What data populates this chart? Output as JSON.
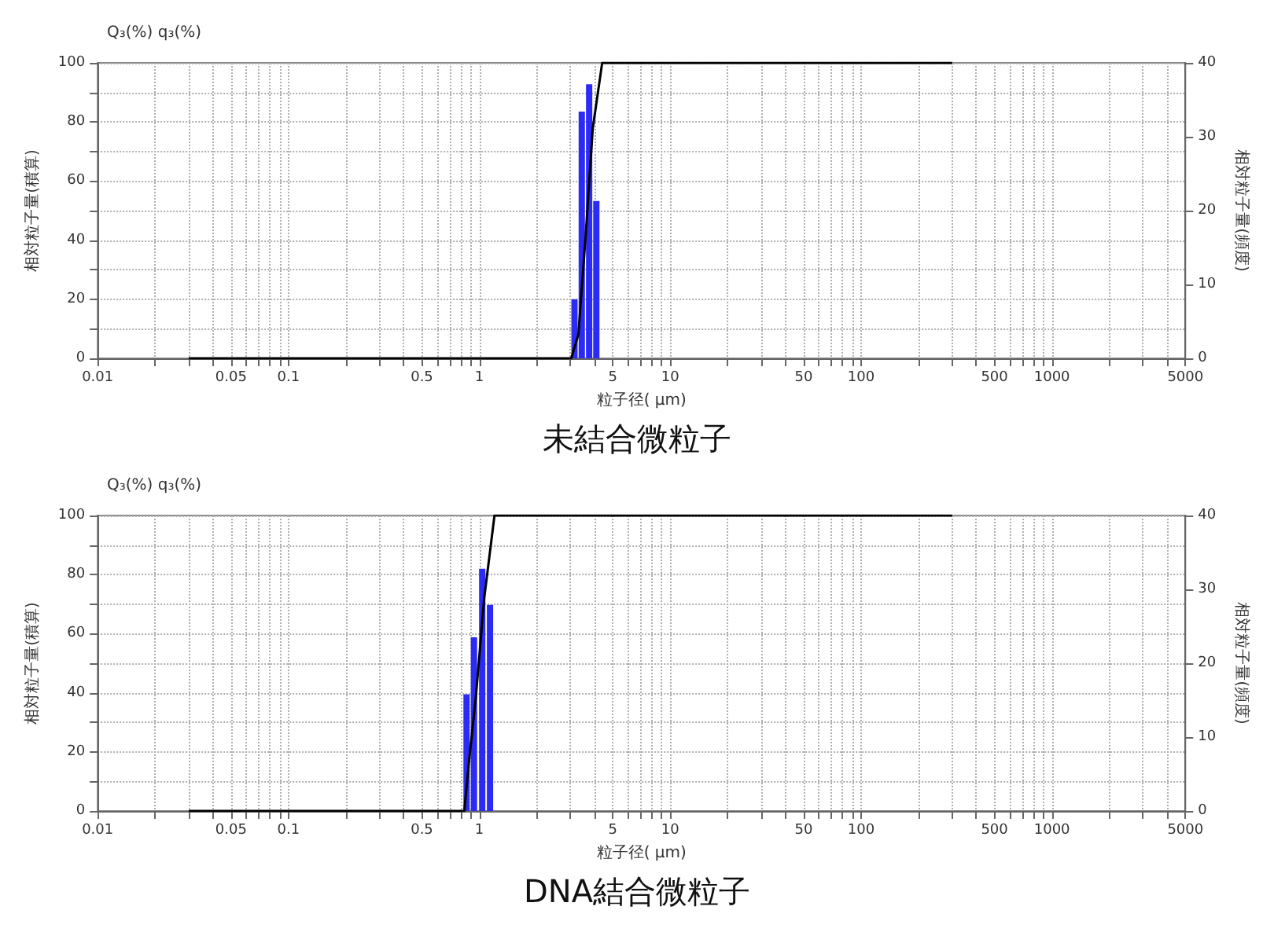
{
  "chart_data": [
    {
      "type": "bar",
      "title": "未結合微粒子",
      "xlabel": "粒子径( μm)",
      "ylabel": "相対粒子量(積算)",
      "y2label": "相対粒子量(頻度)",
      "annotations": [
        "Q₃(%) q₃(%)"
      ],
      "log": "x",
      "grid": true,
      "marker": "none",
      "xlim": [
        0.01,
        5000
      ],
      "ylim": [
        0,
        100
      ],
      "y2lim": [
        0,
        40
      ],
      "xticks": [
        0.01,
        {
          "value": 0.02,
          "label": null
        },
        {
          "value": 0.03,
          "label": null
        },
        {
          "value": 0.04,
          "label": null
        },
        0.05,
        {
          "value": 0.06,
          "label": null
        },
        {
          "value": 0.07,
          "label": null
        },
        {
          "value": 0.08,
          "label": null
        },
        {
          "value": 0.09,
          "label": null
        },
        0.1,
        {
          "value": 0.2,
          "label": null
        },
        {
          "value": 0.3,
          "label": null
        },
        {
          "value": 0.4,
          "label": null
        },
        0.5,
        {
          "value": 0.6,
          "label": null
        },
        {
          "value": 0.7,
          "label": null
        },
        {
          "value": 0.8,
          "label": null
        },
        {
          "value": 0.9,
          "label": null
        },
        1,
        {
          "value": 2,
          "label": null
        },
        {
          "value": 3,
          "label": null
        },
        {
          "value": 4,
          "label": null
        },
        5,
        {
          "value": 6,
          "label": null
        },
        {
          "value": 7,
          "label": null
        },
        {
          "value": 8,
          "label": null
        },
        {
          "value": 9,
          "label": null
        },
        10,
        {
          "value": 20,
          "label": null
        },
        {
          "value": 30,
          "label": null
        },
        {
          "value": 40,
          "label": null
        },
        50,
        {
          "value": 60,
          "label": null
        },
        {
          "value": 70,
          "label": null
        },
        {
          "value": 80,
          "label": null
        },
        {
          "value": 90,
          "label": null
        },
        100,
        {
          "value": 200,
          "label": null
        },
        {
          "value": 300,
          "label": null
        },
        {
          "value": 400,
          "label": null
        },
        500,
        {
          "value": 600,
          "label": null
        },
        {
          "value": 700,
          "label": null
        },
        {
          "value": 800,
          "label": null
        },
        {
          "value": 900,
          "label": null
        },
        1000,
        {
          "value": 2000,
          "label": null
        },
        {
          "value": 3000,
          "label": null
        },
        {
          "value": 4000,
          "label": null
        },
        5000
      ],
      "yticks": [
        0,
        {
          "value": 10,
          "label": null
        },
        20,
        {
          "value": 30,
          "label": null
        },
        40,
        {
          "value": 50,
          "label": null
        },
        60,
        {
          "value": 70,
          "label": null
        },
        80,
        {
          "value": 90,
          "label": null
        },
        100
      ],
      "y2ticks": [
        0,
        10,
        20,
        30,
        40
      ],
      "series": [
        {
          "axis": "y2",
          "color": "#2b2bf5",
          "x": [
            3.15,
            3.44,
            3.76,
            4.1
          ],
          "values": [
            8,
            33.4,
            37.1,
            21.3
          ]
        },
        {
          "type": "line",
          "color": "#000000",
          "x": [
            0.03,
            3.03,
            3.3,
            3.6,
            3.93,
            4.4,
            300
          ],
          "values": [
            0,
            0,
            8,
            41,
            78,
            100,
            100
          ]
        }
      ]
    },
    {
      "type": "bar",
      "title": "DNA結合微粒子",
      "xlabel": "粒子径( μm)",
      "ylabel": "相対粒子量(積算)",
      "y2label": "相対粒子量(頻度)",
      "annotations": [
        "Q₃(%) q₃(%)"
      ],
      "log": "x",
      "grid": true,
      "marker": "none",
      "xlim": [
        0.01,
        5000
      ],
      "ylim": [
        0,
        100
      ],
      "y2lim": [
        0,
        40
      ],
      "xticks": [
        0.01,
        {
          "value": 0.02,
          "label": null
        },
        {
          "value": 0.03,
          "label": null
        },
        {
          "value": 0.04,
          "label": null
        },
        0.05,
        {
          "value": 0.06,
          "label": null
        },
        {
          "value": 0.07,
          "label": null
        },
        {
          "value": 0.08,
          "label": null
        },
        {
          "value": 0.09,
          "label": null
        },
        0.1,
        {
          "value": 0.2,
          "label": null
        },
        {
          "value": 0.3,
          "label": null
        },
        {
          "value": 0.4,
          "label": null
        },
        0.5,
        {
          "value": 0.6,
          "label": null
        },
        {
          "value": 0.7,
          "label": null
        },
        {
          "value": 0.8,
          "label": null
        },
        {
          "value": 0.9,
          "label": null
        },
        1,
        {
          "value": 2,
          "label": null
        },
        {
          "value": 3,
          "label": null
        },
        {
          "value": 4,
          "label": null
        },
        5,
        {
          "value": 6,
          "label": null
        },
        {
          "value": 7,
          "label": null
        },
        {
          "value": 8,
          "label": null
        },
        {
          "value": 9,
          "label": null
        },
        10,
        {
          "value": 20,
          "label": null
        },
        {
          "value": 30,
          "label": null
        },
        {
          "value": 40,
          "label": null
        },
        50,
        {
          "value": 60,
          "label": null
        },
        {
          "value": 70,
          "label": null
        },
        {
          "value": 80,
          "label": null
        },
        {
          "value": 90,
          "label": null
        },
        100,
        {
          "value": 200,
          "label": null
        },
        {
          "value": 300,
          "label": null
        },
        {
          "value": 400,
          "label": null
        },
        500,
        {
          "value": 600,
          "label": null
        },
        {
          "value": 700,
          "label": null
        },
        {
          "value": 800,
          "label": null
        },
        {
          "value": 900,
          "label": null
        },
        1000,
        {
          "value": 2000,
          "label": null
        },
        {
          "value": 3000,
          "label": null
        },
        {
          "value": 4000,
          "label": null
        },
        5000
      ],
      "yticks": [
        0,
        {
          "value": 10,
          "label": null
        },
        20,
        {
          "value": 30,
          "label": null
        },
        40,
        {
          "value": 50,
          "label": null
        },
        60,
        {
          "value": 70,
          "label": null
        },
        80,
        {
          "value": 90,
          "label": null
        },
        100
      ],
      "y2ticks": [
        0,
        10,
        20,
        30,
        40
      ],
      "series": [
        {
          "axis": "y2",
          "color": "#2b2bf5",
          "x": [
            0.857,
            0.937,
            1.035,
            1.137
          ],
          "values": [
            15.8,
            23.5,
            32.8,
            27.9
          ]
        },
        {
          "type": "line",
          "color": "#000000",
          "x": [
            0.03,
            0.834,
            0.88,
            0.96,
            1.06,
            1.2,
            300
          ],
          "values": [
            0,
            0,
            16,
            39,
            72,
            100,
            100
          ]
        }
      ]
    }
  ]
}
